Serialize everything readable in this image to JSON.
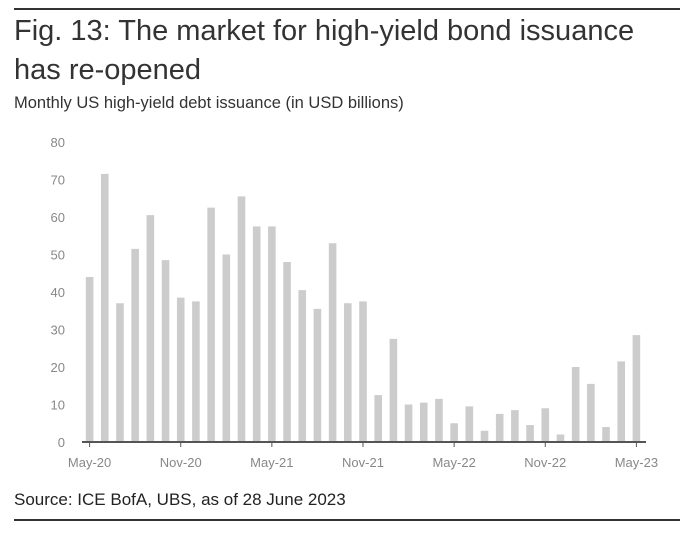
{
  "figure": {
    "title": "Fig. 13: The market for high-yield bond issuance has re-opened",
    "subtitle": "Monthly US high-yield debt issuance (in USD billions)",
    "source": "Source: ICE BofA, UBS, as of 28 June 2023"
  },
  "colors": {
    "bar": "#cccccc",
    "axis": "#555555",
    "tick_text": "#888888"
  },
  "chart_data": {
    "type": "bar",
    "title": "Monthly US high-yield debt issuance (in USD billions)",
    "xlabel": "",
    "ylabel": "",
    "ylim": [
      0,
      80
    ],
    "yticks": [
      0,
      10,
      20,
      30,
      40,
      50,
      60,
      70,
      80
    ],
    "grid": false,
    "legend": "none",
    "categories": [
      "May-20",
      "Jun-20",
      "Jul-20",
      "Aug-20",
      "Sep-20",
      "Oct-20",
      "Nov-20",
      "Dec-20",
      "Jan-21",
      "Feb-21",
      "Mar-21",
      "Apr-21",
      "May-21",
      "Jun-21",
      "Jul-21",
      "Aug-21",
      "Sep-21",
      "Oct-21",
      "Nov-21",
      "Dec-21",
      "Jan-22",
      "Feb-22",
      "Mar-22",
      "Apr-22",
      "May-22",
      "Jun-22",
      "Jul-22",
      "Aug-22",
      "Sep-22",
      "Oct-22",
      "Nov-22",
      "Dec-22",
      "Jan-23",
      "Feb-23",
      "Mar-23",
      "Apr-23",
      "May-23"
    ],
    "values": [
      44,
      71.5,
      37,
      51.5,
      60.5,
      48.5,
      38.5,
      37.5,
      62.5,
      50,
      65.5,
      57.5,
      57.5,
      48,
      40.5,
      35.5,
      53,
      37,
      37.5,
      12.5,
      27.5,
      10,
      10.5,
      11.5,
      5,
      9.5,
      3,
      7.5,
      8.5,
      4.5,
      9,
      2,
      20,
      15.5,
      4,
      21.5,
      28.5
    ],
    "xtick_labels": [
      "May-20",
      "Nov-20",
      "May-21",
      "Nov-21",
      "May-22",
      "Nov-22",
      "May-23"
    ]
  }
}
